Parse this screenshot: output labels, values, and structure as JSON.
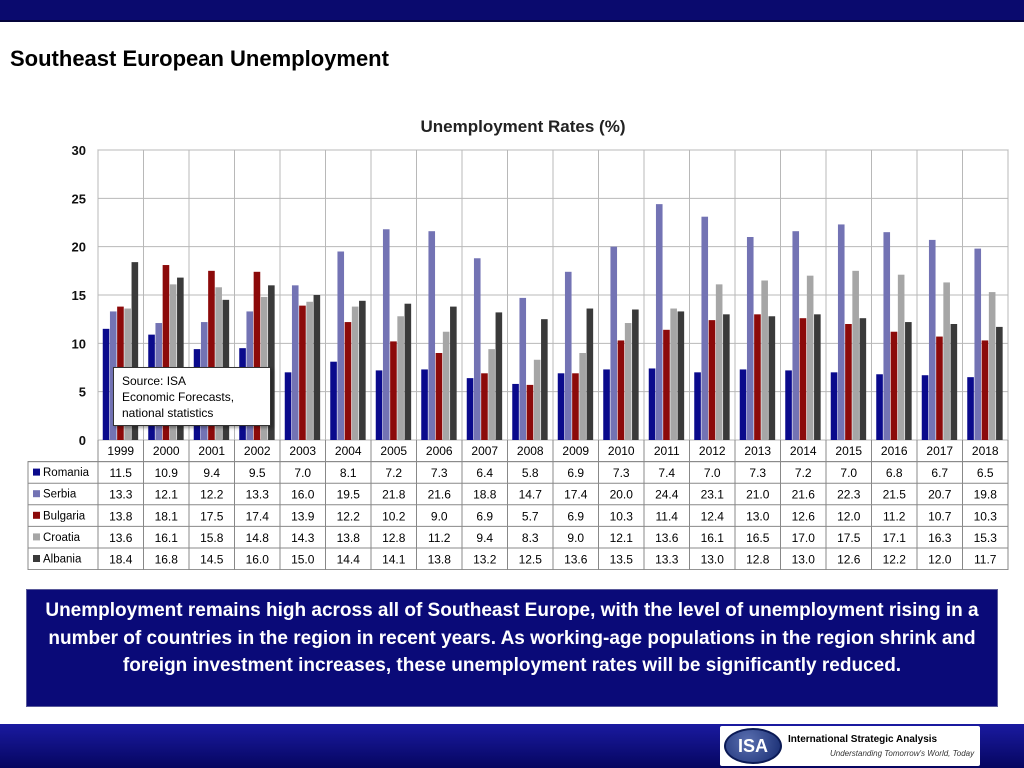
{
  "page": {
    "title": "Southeast European Unemployment",
    "summary": "Unemployment remains high across all of Southeast Europe, with the level of unemployment rising in a number of countries in the region in recent years.  As working-age populations in the region shrink and foreign investment increases, these unemployment rates will be significantly reduced.",
    "source_note": "Source: ISA\nEconomic Forecasts,\nnational statistics"
  },
  "footer": {
    "logo_text": "ISA",
    "company_name": "International Strategic Analysis",
    "tagline": "Understanding Tomorrow's World, Today"
  },
  "colors": {
    "Romania": "#0a0a8c",
    "Serbia": "#7373b4",
    "Bulgaria": "#8c0a0a",
    "Croatia": "#a6a6a6",
    "Albania": "#3a3a3a",
    "header_bar": "#0a0a6e",
    "summary_bg": "#0a0a78"
  },
  "chart_data": {
    "type": "bar",
    "title": "Unemployment Rates (%)",
    "xlabel": "",
    "ylabel": "",
    "ylim": [
      0,
      30
    ],
    "yticks": [
      0,
      5,
      10,
      15,
      20,
      25,
      30
    ],
    "grid": true,
    "legend": "data table below chart",
    "categories": [
      "1999",
      "2000",
      "2001",
      "2002",
      "2003",
      "2004",
      "2005",
      "2006",
      "2007",
      "2008",
      "2009",
      "2010",
      "2011",
      "2012",
      "2013",
      "2014",
      "2015",
      "2016",
      "2017",
      "2018"
    ],
    "series": [
      {
        "name": "Romania",
        "values": [
          11.5,
          10.9,
          9.4,
          9.5,
          7.0,
          8.1,
          7.2,
          7.3,
          6.4,
          5.8,
          6.9,
          7.3,
          7.4,
          7.0,
          7.3,
          7.2,
          7.0,
          6.8,
          6.7,
          6.5
        ]
      },
      {
        "name": "Serbia",
        "values": [
          13.3,
          12.1,
          12.2,
          13.3,
          16.0,
          19.5,
          21.8,
          21.6,
          18.8,
          14.7,
          17.4,
          20.0,
          24.4,
          23.1,
          21.0,
          21.6,
          22.3,
          21.5,
          20.7,
          19.8
        ]
      },
      {
        "name": "Bulgaria",
        "values": [
          13.8,
          18.1,
          17.5,
          17.4,
          13.9,
          12.2,
          10.2,
          9.0,
          6.9,
          5.7,
          6.9,
          10.3,
          11.4,
          12.4,
          13.0,
          12.6,
          12.0,
          11.2,
          10.7,
          10.3
        ]
      },
      {
        "name": "Croatia",
        "values": [
          13.6,
          16.1,
          15.8,
          14.8,
          14.3,
          13.8,
          12.8,
          11.2,
          9.4,
          8.3,
          9.0,
          12.1,
          13.6,
          16.1,
          16.5,
          17.0,
          17.5,
          17.1,
          16.3,
          15.3
        ]
      },
      {
        "name": "Albania",
        "values": [
          18.4,
          16.8,
          14.5,
          16.0,
          15.0,
          14.4,
          14.1,
          13.8,
          13.2,
          12.5,
          13.6,
          13.5,
          13.3,
          13.0,
          12.8,
          13.0,
          12.6,
          12.2,
          12.0,
          11.7
        ]
      }
    ]
  }
}
